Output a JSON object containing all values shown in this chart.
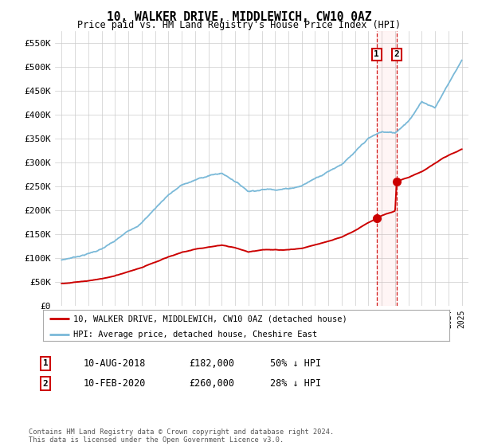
{
  "title": "10, WALKER DRIVE, MIDDLEWICH, CW10 0AZ",
  "subtitle": "Price paid vs. HM Land Registry's House Price Index (HPI)",
  "hpi_label": "HPI: Average price, detached house, Cheshire East",
  "property_label": "10, WALKER DRIVE, MIDDLEWICH, CW10 0AZ (detached house)",
  "sale1": {
    "label": "1",
    "date": "10-AUG-2018",
    "price": 182000,
    "pct": "50% ↓ HPI",
    "year": 2018.62
  },
  "sale2": {
    "label": "2",
    "date": "10-FEB-2020",
    "price": 260000,
    "pct": "28% ↓ HPI",
    "year": 2020.12
  },
  "hpi_color": "#7ab9d8",
  "property_color": "#cc0000",
  "dashed_color": "#cc0000",
  "background_color": "#ffffff",
  "grid_color": "#cccccc",
  "ylim": [
    0,
    575000
  ],
  "xlim_start": 1994.5,
  "xlim_end": 2025.5,
  "footer": "Contains HM Land Registry data © Crown copyright and database right 2024.\nThis data is licensed under the Open Government Licence v3.0.",
  "yticks": [
    0,
    50000,
    100000,
    150000,
    200000,
    250000,
    300000,
    350000,
    400000,
    450000,
    500000,
    550000
  ],
  "ytick_labels": [
    "£0",
    "£50K",
    "£100K",
    "£150K",
    "£200K",
    "£250K",
    "£300K",
    "£350K",
    "£400K",
    "£450K",
    "£500K",
    "£550K"
  ],
  "hpi_knots_x": [
    1995,
    1996,
    1997,
    1998,
    1999,
    2000,
    2001,
    2002,
    2003,
    2004,
    2005,
    2006,
    2007,
    2008,
    2009,
    2010,
    2011,
    2012,
    2013,
    2014,
    2015,
    2016,
    2017,
    2018,
    2019,
    2020,
    2021,
    2022,
    2023,
    2024,
    2025
  ],
  "hpi_knots_y": [
    95000,
    102000,
    110000,
    120000,
    135000,
    155000,
    175000,
    205000,
    235000,
    255000,
    265000,
    275000,
    280000,
    265000,
    245000,
    250000,
    252000,
    255000,
    262000,
    278000,
    295000,
    312000,
    335000,
    362000,
    375000,
    372000,
    400000,
    440000,
    430000,
    480000,
    530000
  ],
  "prop_knots_x": [
    1995,
    1996,
    1997,
    1998,
    1999,
    2000,
    2001,
    2002,
    2003,
    2004,
    2005,
    2006,
    2007,
    2008,
    2009,
    2010,
    2011,
    2012,
    2013,
    2014,
    2015,
    2016,
    2017,
    2018,
    2018.62,
    2019,
    2020,
    2020.12,
    2021,
    2022,
    2023,
    2024,
    2025
  ],
  "prop_knots_y": [
    46000,
    49000,
    52000,
    56000,
    62000,
    70000,
    79000,
    90000,
    102000,
    112000,
    118000,
    122000,
    127000,
    122000,
    113000,
    117000,
    118000,
    119000,
    122000,
    129000,
    137000,
    145000,
    158000,
    174000,
    182000,
    188000,
    198000,
    260000,
    268000,
    280000,
    298000,
    315000,
    328000
  ]
}
